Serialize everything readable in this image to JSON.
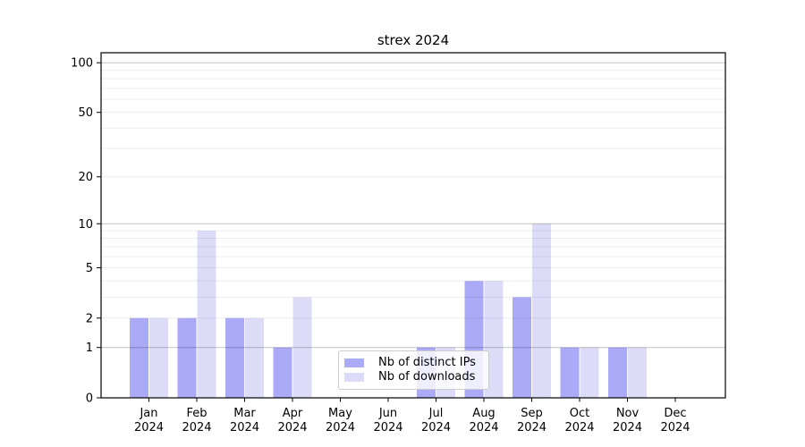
{
  "chart_data": {
    "type": "bar",
    "title": "strex 2024",
    "categories": [
      "Jan",
      "Feb",
      "Mar",
      "Apr",
      "May",
      "Jun",
      "Jul",
      "Aug",
      "Sep",
      "Oct",
      "Nov",
      "Dec"
    ],
    "year_label": "2024",
    "series": [
      {
        "name": "Nb of distinct IPs",
        "color": "#aaaaf7",
        "values": [
          2,
          2,
          2,
          1,
          0,
          0,
          1,
          4,
          3,
          1,
          1,
          0
        ]
      },
      {
        "name": "Nb of downloads",
        "color": "#dcdcf9",
        "values": [
          2,
          9,
          2,
          3,
          0,
          0,
          1,
          4,
          10,
          1,
          1,
          0
        ]
      }
    ],
    "yscale": "log1p",
    "ylim": [
      0,
      115
    ],
    "yticks": [
      100,
      50,
      20,
      10,
      5,
      2,
      1,
      0
    ],
    "grid": {
      "major_lines": [
        1,
        10,
        100
      ],
      "minor_lines": [
        2,
        3,
        4,
        5,
        6,
        7,
        8,
        9,
        20,
        30,
        40,
        50,
        60,
        70,
        80,
        90
      ],
      "major_color": "rgba(0,0,0,0.24)",
      "minor_color": "rgba(0,0,0,0.07)"
    },
    "legend_position": "lower center",
    "spine_color": "#000000"
  }
}
